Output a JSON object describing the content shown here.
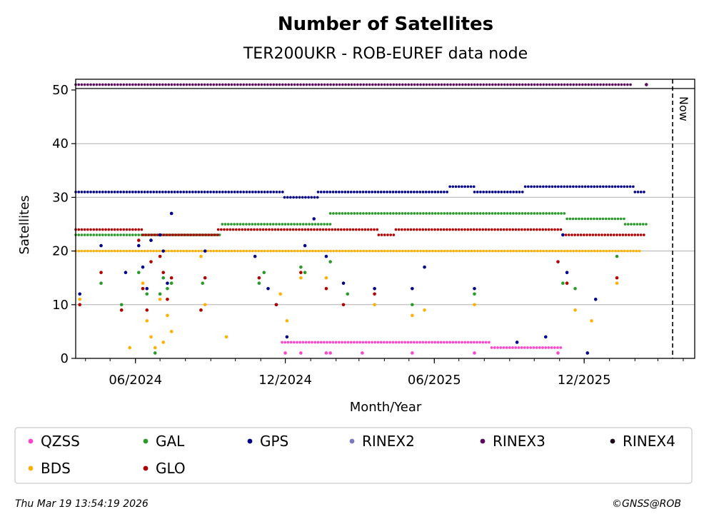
{
  "chart_data": {
    "type": "scatter",
    "title": "Number of Satellites",
    "subtitle": "TER200UKR - ROB-EUREF data node",
    "xlabel": "Month/Year",
    "ylabel": "Satellites",
    "ylim": [
      0,
      52
    ],
    "xlim": [
      "2024-03-20",
      "2026-04-15"
    ],
    "x_ticks": [
      {
        "date": "2024-06-01",
        "label": "06/2024"
      },
      {
        "date": "2024-12-01",
        "label": "12/2024"
      },
      {
        "date": "2025-06-01",
        "label": "06/2025"
      },
      {
        "date": "2025-12-01",
        "label": "12/2025"
      }
    ],
    "y_ticks": [
      0,
      10,
      20,
      30,
      40,
      50
    ],
    "grid": "horizontal",
    "now_marker": {
      "date": "2026-03-19",
      "label": "Now"
    },
    "legend_position": "bottom",
    "series": [
      {
        "name": "QZSS",
        "color": "#ff44cc",
        "segments": [
          {
            "start": "2024-11-27",
            "end": "2025-08-10",
            "value": 3
          },
          {
            "start": "2025-08-10",
            "end": "2025-11-05",
            "value": 2
          }
        ],
        "outliers": [
          [
            "2024-12-01",
            1
          ],
          [
            "2024-12-20",
            1
          ],
          [
            "2025-01-20",
            1
          ],
          [
            "2025-01-25",
            1
          ],
          [
            "2025-03-05",
            1
          ],
          [
            "2025-05-05",
            1
          ],
          [
            "2025-07-20",
            1
          ],
          [
            "2025-10-30",
            1
          ]
        ]
      },
      {
        "name": "GAL",
        "color": "#2a9a2a",
        "segments": [
          {
            "start": "2024-03-20",
            "end": "2024-09-15",
            "value": 23
          },
          {
            "start": "2024-09-15",
            "end": "2025-01-25",
            "value": 25
          },
          {
            "start": "2025-01-25",
            "end": "2025-11-10",
            "value": 27
          },
          {
            "start": "2025-11-10",
            "end": "2026-01-20",
            "value": 26
          },
          {
            "start": "2026-01-20",
            "end": "2026-02-15",
            "value": 25
          }
        ],
        "outliers": [
          [
            "2024-04-20",
            14
          ],
          [
            "2024-05-15",
            10
          ],
          [
            "2024-05-15",
            9
          ],
          [
            "2024-06-05",
            16
          ],
          [
            "2024-06-10",
            13
          ],
          [
            "2024-06-15",
            12
          ],
          [
            "2024-06-20",
            22
          ],
          [
            "2024-06-25",
            1
          ],
          [
            "2024-07-01",
            12
          ],
          [
            "2024-07-05",
            15
          ],
          [
            "2024-07-10",
            13
          ],
          [
            "2024-07-15",
            14
          ],
          [
            "2024-08-20",
            9
          ],
          [
            "2024-08-22",
            14
          ],
          [
            "2024-10-30",
            14
          ],
          [
            "2024-11-05",
            16
          ],
          [
            "2024-12-20",
            17
          ],
          [
            "2024-12-25",
            16
          ],
          [
            "2025-01-25",
            18
          ],
          [
            "2025-02-15",
            12
          ],
          [
            "2025-05-05",
            10
          ],
          [
            "2025-07-20",
            12
          ],
          [
            "2025-11-05",
            14
          ],
          [
            "2025-11-20",
            13
          ],
          [
            "2026-01-10",
            19
          ]
        ]
      },
      {
        "name": "GPS",
        "color": "#00008b",
        "segments": [
          {
            "start": "2024-03-20",
            "end": "2024-11-30",
            "value": 31
          },
          {
            "start": "2024-11-30",
            "end": "2025-01-10",
            "value": 30
          },
          {
            "start": "2025-01-10",
            "end": "2025-06-20",
            "value": 31
          },
          {
            "start": "2025-06-20",
            "end": "2025-07-20",
            "value": 32
          },
          {
            "start": "2025-07-20",
            "end": "2025-09-20",
            "value": 31
          },
          {
            "start": "2025-09-20",
            "end": "2026-02-01",
            "value": 32
          },
          {
            "start": "2026-02-01",
            "end": "2026-02-15",
            "value": 31
          }
        ],
        "outliers": [
          [
            "2024-03-25",
            12
          ],
          [
            "2024-04-20",
            21
          ],
          [
            "2024-05-20",
            16
          ],
          [
            "2024-06-05",
            21
          ],
          [
            "2024-06-10",
            17
          ],
          [
            "2024-06-15",
            13
          ],
          [
            "2024-06-20",
            22
          ],
          [
            "2024-07-01",
            23
          ],
          [
            "2024-07-05",
            20
          ],
          [
            "2024-07-10",
            14
          ],
          [
            "2024-07-15",
            27
          ],
          [
            "2024-08-25",
            20
          ],
          [
            "2024-10-25",
            19
          ],
          [
            "2024-11-10",
            13
          ],
          [
            "2024-11-20",
            10
          ],
          [
            "2024-12-03",
            4
          ],
          [
            "2024-12-25",
            21
          ],
          [
            "2025-01-05",
            26
          ],
          [
            "2025-01-20",
            19
          ],
          [
            "2025-02-10",
            14
          ],
          [
            "2025-03-20",
            13
          ],
          [
            "2025-05-05",
            13
          ],
          [
            "2025-05-20",
            17
          ],
          [
            "2025-07-20",
            13
          ],
          [
            "2025-09-10",
            3
          ],
          [
            "2025-10-15",
            4
          ],
          [
            "2025-11-05",
            23
          ],
          [
            "2025-11-10",
            16
          ],
          [
            "2025-12-05",
            1
          ],
          [
            "2025-12-15",
            11
          ]
        ]
      },
      {
        "name": "RINEX2",
        "color": "#7b7bbf",
        "segments": [],
        "outliers": []
      },
      {
        "name": "RINEX3",
        "color": "#5c0a5c",
        "segments": [
          {
            "start": "2024-03-20",
            "end": "2026-01-30",
            "value": 51
          }
        ],
        "outliers": [
          [
            "2026-02-15",
            51
          ]
        ]
      },
      {
        "name": "RINEX4",
        "color": "#1a0a1a",
        "segments": [],
        "outliers": []
      },
      {
        "name": "BDS",
        "color": "#ffb000",
        "segments": [
          {
            "start": "2024-03-20",
            "end": "2026-02-10",
            "value": 20
          }
        ],
        "outliers": [
          [
            "2024-03-25",
            11
          ],
          [
            "2024-05-25",
            2
          ],
          [
            "2024-06-10",
            14
          ],
          [
            "2024-06-15",
            7
          ],
          [
            "2024-06-20",
            4
          ],
          [
            "2024-06-25",
            2
          ],
          [
            "2024-07-01",
            11
          ],
          [
            "2024-07-05",
            3
          ],
          [
            "2024-07-10",
            8
          ],
          [
            "2024-07-15",
            5
          ],
          [
            "2024-08-20",
            19
          ],
          [
            "2024-08-25",
            10
          ],
          [
            "2024-09-20",
            4
          ],
          [
            "2024-11-25",
            12
          ],
          [
            "2024-12-03",
            7
          ],
          [
            "2024-12-20",
            15
          ],
          [
            "2025-01-20",
            15
          ],
          [
            "2025-03-20",
            10
          ],
          [
            "2025-05-05",
            8
          ],
          [
            "2025-05-20",
            9
          ],
          [
            "2025-07-20",
            10
          ],
          [
            "2025-11-20",
            9
          ],
          [
            "2025-12-10",
            7
          ],
          [
            "2026-01-10",
            14
          ]
        ]
      },
      {
        "name": "GLO",
        "color": "#b00000",
        "segments": [
          {
            "start": "2024-03-20",
            "end": "2024-06-10",
            "value": 24
          },
          {
            "start": "2024-06-10",
            "end": "2024-09-10",
            "value": 23
          },
          {
            "start": "2024-09-10",
            "end": "2025-03-25",
            "value": 24
          },
          {
            "start": "2025-03-25",
            "end": "2025-04-15",
            "value": 23
          },
          {
            "start": "2025-04-15",
            "end": "2025-11-05",
            "value": 24
          },
          {
            "start": "2025-11-05",
            "end": "2026-02-15",
            "value": 23
          }
        ],
        "outliers": [
          [
            "2024-03-25",
            10
          ],
          [
            "2024-04-20",
            16
          ],
          [
            "2024-05-15",
            9
          ],
          [
            "2024-06-05",
            22
          ],
          [
            "2024-06-10",
            13
          ],
          [
            "2024-06-15",
            9
          ],
          [
            "2024-06-20",
            18
          ],
          [
            "2024-07-01",
            19
          ],
          [
            "2024-07-05",
            16
          ],
          [
            "2024-07-10",
            11
          ],
          [
            "2024-07-15",
            15
          ],
          [
            "2024-08-20",
            9
          ],
          [
            "2024-08-25",
            15
          ],
          [
            "2024-10-30",
            15
          ],
          [
            "2024-11-20",
            10
          ],
          [
            "2024-12-20",
            16
          ],
          [
            "2025-01-20",
            13
          ],
          [
            "2025-02-10",
            10
          ],
          [
            "2025-03-20",
            12
          ],
          [
            "2025-10-30",
            18
          ],
          [
            "2025-11-10",
            14
          ],
          [
            "2026-01-10",
            15
          ]
        ]
      }
    ]
  },
  "footer": {
    "timestamp": "Thu Mar 19 13:54:19 2026",
    "copyright": "©GNSS@ROB"
  }
}
